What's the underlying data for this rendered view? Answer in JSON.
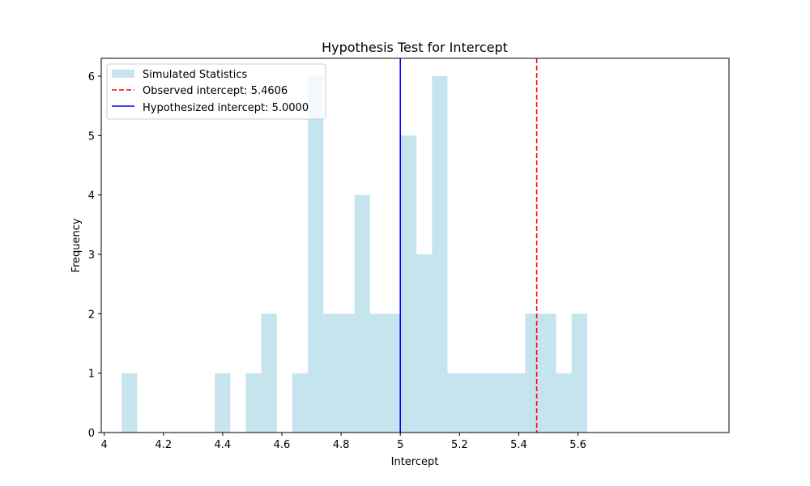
{
  "chart_data": {
    "type": "bar",
    "title": "Hypothesis Test for Intercept",
    "xlabel": "Intercept",
    "ylabel": "Frequency",
    "xlim": [
      3.99,
      6.11
    ],
    "ylim": [
      0,
      6.3
    ],
    "xticks": [
      4.0,
      4.2,
      4.4,
      4.6,
      4.8,
      5.0,
      5.2,
      5.4,
      5.6
    ],
    "yticks": [
      0,
      1,
      2,
      3,
      4,
      5,
      6
    ],
    "grid": false,
    "legend_position": "upper-left",
    "histogram": {
      "name": "Simulated Statistics",
      "color": "#add8e6",
      "alpha": 0.7,
      "bin_start": 4.059,
      "bin_width": 0.0524,
      "counts": [
        1,
        0,
        0,
        0,
        0,
        0,
        1,
        0,
        1,
        2,
        0,
        1,
        6,
        2,
        2,
        4,
        2,
        2,
        5,
        3,
        6,
        1,
        1,
        1,
        1,
        1,
        2,
        2,
        1,
        2
      ]
    },
    "lines": [
      {
        "name": "Observed intercept: 5.4606",
        "x": 5.4606,
        "color": "#ff0000",
        "style": "dashed"
      },
      {
        "name": "Hypothesized intercept: 5.0000",
        "x": 5.0,
        "color": "#0000ff",
        "style": "solid"
      }
    ]
  }
}
